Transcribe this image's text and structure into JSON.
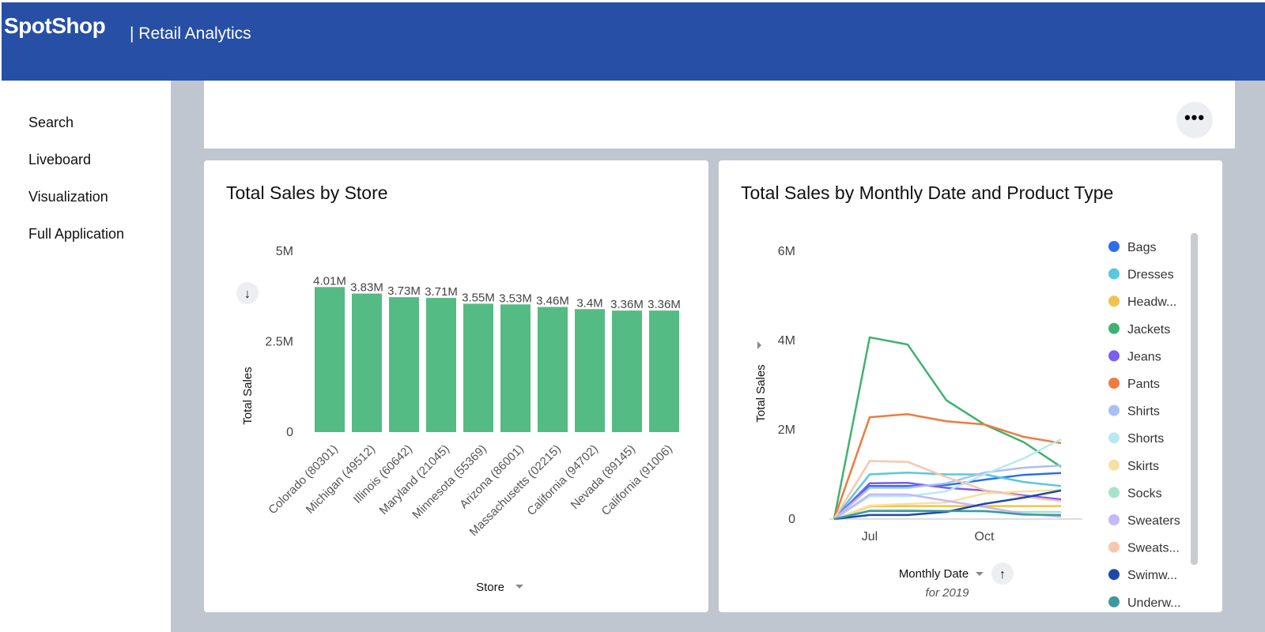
{
  "header": {
    "logo": "SpotShop",
    "subtitle": "| Retail Analytics",
    "color": "#274fa5"
  },
  "sidebar": {
    "items": [
      {
        "label": "Search"
      },
      {
        "label": "Liveboard"
      },
      {
        "label": "Visualization"
      },
      {
        "label": "Full Application"
      }
    ]
  },
  "toolbar": {
    "more_icon": "more-horizontal-icon",
    "more_label": "•••"
  },
  "chart_data": [
    {
      "type": "bar",
      "title": "Total Sales by Store",
      "xlabel": "Store",
      "ylabel": "Total Sales",
      "ylim": [
        0,
        5000000
      ],
      "yticks": [
        "0",
        "2.5M",
        "5M"
      ],
      "color": "#55bb84",
      "categories": [
        "Colorado (80301)",
        "Michigan (49512)",
        "Illinois (60642)",
        "Maryland (21045)",
        "Minnesota (55369)",
        "Arizona (86001)",
        "Massachusetts (02215)",
        "California (94702)",
        "Nevada (89145)",
        "California (91006)"
      ],
      "values": [
        4010000,
        3830000,
        3730000,
        3710000,
        3550000,
        3530000,
        3460000,
        3400000,
        3360000,
        3360000
      ],
      "labels": [
        "4.01M",
        "3.83M",
        "3.73M",
        "3.71M",
        "3.55M",
        "3.53M",
        "3.46M",
        "3.4M",
        "3.36M",
        "3.36M"
      ]
    },
    {
      "type": "line",
      "title": "Total Sales by Monthly Date and Product Type",
      "xlabel": "Monthly Date",
      "xsublabel": "for 2019",
      "ylabel": "Total Sales",
      "ylim": [
        0,
        6000000
      ],
      "yticks": [
        "0",
        "2M",
        "4M",
        "6M"
      ],
      "xticks": [
        "Jul",
        "Oct"
      ],
      "legend": "right",
      "x": [
        "2019-06",
        "2019-07",
        "2019-08",
        "2019-09",
        "2019-10",
        "2019-11",
        "2019-12"
      ],
      "series": [
        {
          "name": "Bags",
          "color": "#2e6ee6",
          "values": [
            0,
            0.74,
            0.74,
            0.76,
            0.88,
            0.99,
            1.03
          ]
        },
        {
          "name": "Dresses",
          "color": "#5ac7dc",
          "values": [
            0,
            1.0,
            1.04,
            1.0,
            1.0,
            0.83,
            0.74
          ]
        },
        {
          "name": "Headw...",
          "color": "#f2c24a",
          "values": [
            0,
            0.28,
            0.29,
            0.29,
            0.29,
            0.29,
            0.29
          ]
        },
        {
          "name": "Jackets",
          "color": "#3fb26f",
          "values": [
            0,
            4.07,
            3.91,
            2.66,
            2.12,
            1.72,
            1.17
          ]
        },
        {
          "name": "Jeans",
          "color": "#7a5ff0",
          "values": [
            0,
            0.8,
            0.81,
            0.7,
            0.64,
            0.53,
            0.44
          ]
        },
        {
          "name": "Pants",
          "color": "#f07a3f",
          "values": [
            0,
            2.28,
            2.35,
            2.19,
            2.12,
            1.84,
            1.7
          ]
        },
        {
          "name": "Shirts",
          "color": "#a8c0f5",
          "values": [
            0,
            0.7,
            0.7,
            0.8,
            1.04,
            1.15,
            1.2
          ]
        },
        {
          "name": "Shorts",
          "color": "#b9e8f2",
          "values": [
            0,
            0.51,
            0.51,
            0.62,
            1.0,
            1.36,
            1.79
          ]
        },
        {
          "name": "Skirts",
          "color": "#f7e0a3",
          "values": [
            0,
            0.3,
            0.34,
            0.37,
            0.57,
            0.62,
            0.65
          ]
        },
        {
          "name": "Socks",
          "color": "#a6e3cb",
          "values": [
            0,
            0.2,
            0.2,
            0.18,
            0.17,
            0.16,
            0.16
          ]
        },
        {
          "name": "Sweaters",
          "color": "#c4b8f5",
          "values": [
            0,
            0.55,
            0.55,
            0.41,
            0.27,
            0.12,
            0.05
          ]
        },
        {
          "name": "Sweats...",
          "color": "#f5c8ae",
          "values": [
            0,
            1.3,
            1.28,
            0.94,
            0.65,
            0.5,
            0.4
          ]
        },
        {
          "name": "Swimw...",
          "color": "#1d4aa8",
          "values": [
            0,
            0.09,
            0.09,
            0.16,
            0.34,
            0.48,
            0.64
          ]
        },
        {
          "name": "Underw...",
          "color": "#3a9aa0",
          "values": [
            0,
            0.18,
            0.18,
            0.18,
            0.18,
            0.1,
            0.09
          ]
        }
      ]
    }
  ]
}
